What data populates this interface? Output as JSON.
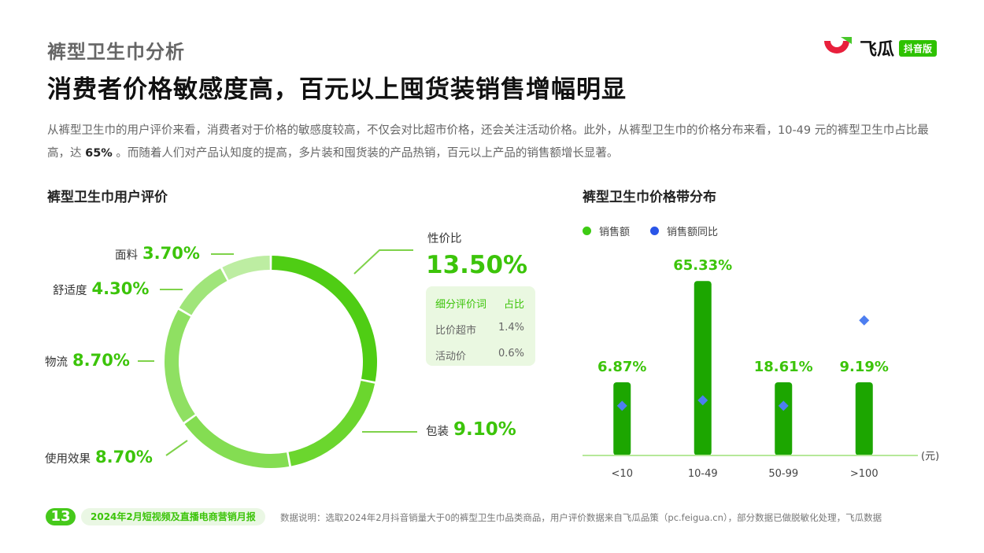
{
  "header": {
    "section_title": "裤型卫生巾分析",
    "headline": "消费者价格敏感度高，百元以上囤货装销售增幅明显",
    "logo_text": "飞瓜",
    "logo_badge": "抖音版"
  },
  "intro": {
    "part1": "从裤型卫生巾的用户评价来看，消费者对于价格的敏感度较高，不仅会对比超市价格，还会关注活动价格。此外，从裤型卫生巾的价格分布来看，10-49 元的裤型卫生巾占比最高，达 ",
    "highlight": "65%",
    "part2": " 。而随着人们对产品认知度的提高，多片装和囤货装的产品热销，百元以上产品的销售额增长显著。"
  },
  "left_panel": {
    "title": "裤型卫生巾用户评价",
    "sub_table": {
      "header": [
        "细分评价词",
        "占比"
      ],
      "rows": [
        [
          "比价超市",
          "1.4%"
        ],
        [
          "活动价",
          "0.6%"
        ]
      ]
    }
  },
  "right_panel": {
    "title": "裤型卫生巾价格带分布",
    "legend": [
      "销售额",
      "销售额同比"
    ],
    "unit": "(元)"
  },
  "chart_data": [
    {
      "type": "pie",
      "title": "裤型卫生巾用户评价",
      "slices": [
        {
          "label": "性价比",
          "value": 13.5,
          "display": "13.50%",
          "color": "#4fcd14"
        },
        {
          "label": "包装",
          "value": 9.1,
          "display": "9.10%",
          "color": "#6bd62e"
        },
        {
          "label": "使用效果",
          "value": 8.7,
          "display": "8.70%",
          "color": "#84dd52"
        },
        {
          "label": "物流",
          "value": 8.7,
          "display": "8.70%",
          "color": "#8fe062"
        },
        {
          "label": "舒适度",
          "value": 4.3,
          "display": "4.30%",
          "color": "#a0e57a"
        },
        {
          "label": "面料",
          "value": 3.7,
          "display": "3.70%",
          "color": "#bdeda2"
        }
      ]
    },
    {
      "type": "bar",
      "title": "裤型卫生巾价格带分布",
      "categories": [
        "<10",
        "10-49",
        "50-99",
        ">100"
      ],
      "series": [
        {
          "name": "销售额",
          "values": [
            6.87,
            65.33,
            18.61,
            9.19
          ],
          "labels": [
            "6.87%",
            "65.33%",
            "18.61%",
            "9.19%"
          ],
          "color": "#1ca600"
        },
        {
          "name": "销售额同比",
          "values": [
            18,
            20,
            18,
            49
          ],
          "color": "#4d7ef0"
        }
      ],
      "ylim": [
        0,
        100
      ],
      "xlabel": "(元)"
    }
  ],
  "footer": {
    "page": "13",
    "report": "2024年2月短视频及直播电商营销月报",
    "note": "数据说明：选取2024年2月抖音销量大于0的裤型卫生巾品类商品，用户评价数据来自飞瓜品策（pc.feigua.cn），部分数据已做脱敏化处理，飞瓜数据"
  }
}
